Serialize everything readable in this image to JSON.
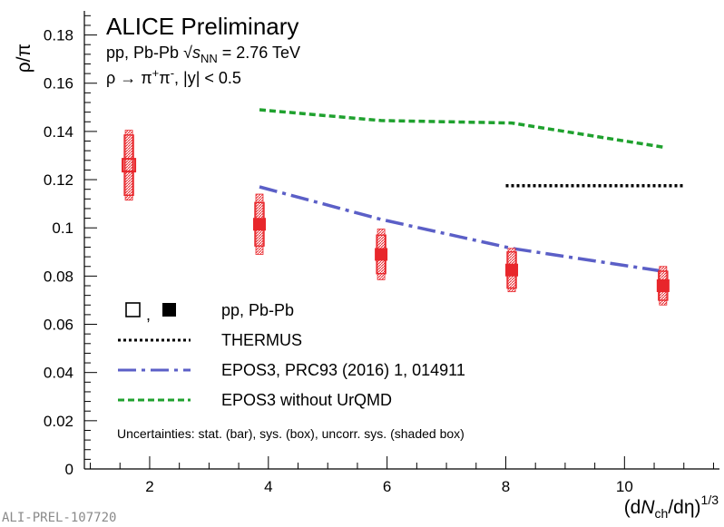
{
  "chart_data": {
    "type": "scatter",
    "title": "ALICE Preliminary",
    "subtitle": {
      "system_prefix": "pp, Pb-Pb ",
      "energy_root": "s",
      "energy_sub": "NN",
      "energy_value": " = 2.76 TeV"
    },
    "decay": {
      "rho": "ρ → π",
      "plus": "+",
      "pi": "π",
      "minus": "-",
      "cut": ", |y| < 0.5"
    },
    "ylabel": "ρ/π",
    "xlabel": {
      "open": "(d",
      "n": "N",
      "ch": "ch",
      "deta": "/dη)",
      "power": "1/3"
    },
    "xlim": [
      0.9,
      11.6
    ],
    "ylim": [
      0,
      0.19
    ],
    "x_ticks": [
      2,
      4,
      6,
      8,
      10
    ],
    "x_tick_labels": [
      "2",
      "4",
      "6",
      "8",
      "10"
    ],
    "y_ticks": [
      0,
      0.02,
      0.04,
      0.06,
      0.08,
      0.1,
      0.12,
      0.14,
      0.16,
      0.18
    ],
    "y_tick_labels": [
      "0",
      "0.02",
      "0.04",
      "0.06",
      "0.08",
      "0.1",
      "0.12",
      "0.14",
      "0.16",
      "0.18"
    ],
    "series": [
      {
        "name": "pp",
        "marker": "open-square",
        "color": "#e8262b",
        "points": [
          {
            "x": 1.65,
            "y": 0.126,
            "sys": 0.0125,
            "uncorr": 0.0145
          }
        ]
      },
      {
        "name": "Pb-Pb",
        "marker": "filled-square",
        "color": "#e8262b",
        "points": [
          {
            "x": 3.85,
            "y": 0.1015,
            "sys": 0.009,
            "uncorr": 0.0125
          },
          {
            "x": 5.9,
            "y": 0.089,
            "sys": 0.008,
            "uncorr": 0.0105
          },
          {
            "x": 8.1,
            "y": 0.0825,
            "sys": 0.0075,
            "uncorr": 0.009
          },
          {
            "x": 10.65,
            "y": 0.076,
            "sys": 0.006,
            "uncorr": 0.008
          }
        ]
      }
    ],
    "models": [
      {
        "name": "THERMUS",
        "style": "dotted",
        "color": "#000000",
        "x": [
          8.0,
          11.0
        ],
        "y": [
          0.1175,
          0.1175
        ]
      },
      {
        "name": "EPOS3, PRC93 (2016) 1, 014911",
        "style": "dash-dot",
        "color": "#5b5fc7",
        "x": [
          3.85,
          5.9,
          8.1,
          10.65
        ],
        "y": [
          0.117,
          0.1035,
          0.0915,
          0.082
        ]
      },
      {
        "name": "EPOS3 without UrQMD",
        "style": "dashed",
        "color": "#1fa12e",
        "x": [
          3.85,
          5.9,
          8.1,
          10.65
        ],
        "y": [
          0.149,
          0.1445,
          0.1435,
          0.1335
        ]
      }
    ],
    "legend": {
      "placement": "bottom-left",
      "marker_separator": ",",
      "marker_label": "pp, Pb-Pb"
    },
    "annotation": "Uncertainties: stat. (bar), sys. (box), uncorr. sys. (shaded box)"
  },
  "watermark": "ALI-PREL-107720"
}
